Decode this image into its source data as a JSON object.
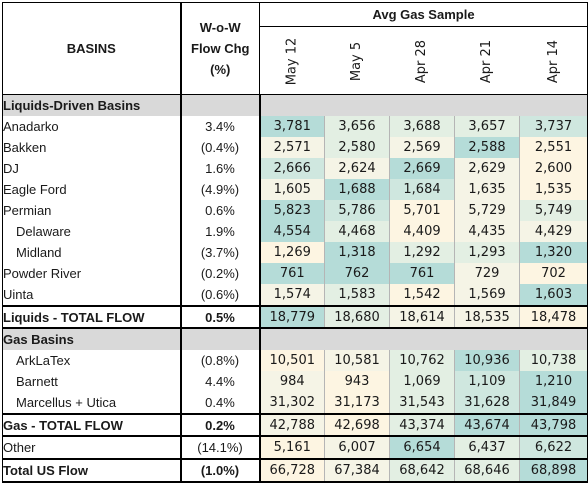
{
  "header": {
    "basins_label": "BASINS",
    "wow_line1": "W-o-W",
    "wow_line2": "Flow Chg",
    "wow_line3": "(%)",
    "avg_label": "Avg Gas Sample",
    "dates": [
      "May 12",
      "May 5",
      "Apr 28",
      "Apr 21",
      "Apr 14"
    ]
  },
  "colors": {
    "teal_strong": "#b5dcd8",
    "teal_mid": "#cfe7df",
    "teal_light": "#e3efe3",
    "cream": "#fdf5e2",
    "pale": "#f5f4e6",
    "section_gray": "#d9d9d9"
  },
  "liquids": {
    "section_label": "Liquids-Driven Basins",
    "rows": [
      {
        "name": "Anadarko",
        "chg": "3.4%",
        "vals": [
          "3,781",
          "3,656",
          "3,688",
          "3,657",
          "3,737"
        ],
        "tints": [
          "teal_strong",
          "teal_light",
          "teal_light",
          "teal_light",
          "teal_mid"
        ]
      },
      {
        "name": "Bakken",
        "chg": "(0.4%)",
        "vals": [
          "2,571",
          "2,580",
          "2,569",
          "2,588",
          "2,551"
        ],
        "tints": [
          "pale",
          "teal_light",
          "pale",
          "teal_strong",
          "cream"
        ]
      },
      {
        "name": "DJ",
        "chg": "1.6%",
        "vals": [
          "2,666",
          "2,624",
          "2,669",
          "2,629",
          "2,600"
        ],
        "tints": [
          "teal_mid",
          "pale",
          "teal_strong",
          "pale",
          "cream"
        ]
      },
      {
        "name": "Eagle Ford",
        "chg": "(4.9%)",
        "vals": [
          "1,605",
          "1,688",
          "1,684",
          "1,635",
          "1,535"
        ],
        "tints": [
          "pale",
          "teal_strong",
          "teal_mid",
          "pale",
          "cream"
        ]
      },
      {
        "name": "Permian",
        "chg": "0.6%",
        "vals": [
          "5,823",
          "5,786",
          "5,701",
          "5,729",
          "5,749"
        ],
        "tints": [
          "teal_strong",
          "teal_mid",
          "cream",
          "pale",
          "teal_light"
        ]
      },
      {
        "name": "Delaware",
        "chg": "1.9%",
        "sub": true,
        "vals": [
          "4,554",
          "4,468",
          "4,409",
          "4,435",
          "4,429"
        ],
        "tints": [
          "teal_strong",
          "teal_light",
          "cream",
          "pale",
          "pale"
        ]
      },
      {
        "name": "Midland",
        "chg": "(3.7%)",
        "sub": true,
        "vals": [
          "1,269",
          "1,318",
          "1,292",
          "1,293",
          "1,320"
        ],
        "tints": [
          "cream",
          "teal_strong",
          "teal_light",
          "teal_light",
          "teal_strong"
        ]
      },
      {
        "name": "Powder River",
        "chg": "(0.2%)",
        "vals": [
          "761",
          "762",
          "761",
          "729",
          "702"
        ],
        "tints": [
          "teal_strong",
          "teal_strong",
          "teal_strong",
          "pale",
          "cream"
        ]
      },
      {
        "name": "Uinta",
        "chg": "(0.6%)",
        "vals": [
          "1,574",
          "1,583",
          "1,542",
          "1,569",
          "1,603"
        ],
        "tints": [
          "pale",
          "teal_light",
          "cream",
          "pale",
          "teal_strong"
        ]
      }
    ],
    "total": {
      "name": "Liquids - TOTAL FLOW",
      "chg": "0.5%",
      "vals": [
        "18,779",
        "18,680",
        "18,614",
        "18,535",
        "18,478"
      ],
      "tints": [
        "teal_strong",
        "teal_light",
        "pale",
        "pale",
        "cream"
      ]
    }
  },
  "gas": {
    "section_label": "Gas Basins",
    "rows": [
      {
        "name": "ArkLaTex",
        "chg": "(0.8%)",
        "sub": true,
        "vals": [
          "10,501",
          "10,581",
          "10,762",
          "10,936",
          "10,738"
        ],
        "tints": [
          "cream",
          "pale",
          "teal_light",
          "teal_strong",
          "teal_light"
        ]
      },
      {
        "name": "Barnett",
        "chg": "4.4%",
        "sub": true,
        "vals": [
          "984",
          "943",
          "1,069",
          "1,109",
          "1,210"
        ],
        "tints": [
          "pale",
          "cream",
          "teal_light",
          "teal_mid",
          "teal_strong"
        ]
      },
      {
        "name": "Marcellus + Utica",
        "chg": "0.4%",
        "sub": true,
        "vals": [
          "31,302",
          "31,173",
          "31,543",
          "31,628",
          "31,849"
        ],
        "tints": [
          "pale",
          "cream",
          "teal_light",
          "teal_mid",
          "teal_strong"
        ]
      }
    ],
    "total": {
      "name": "Gas - TOTAL FLOW",
      "chg": "0.2%",
      "vals": [
        "42,788",
        "42,698",
        "43,374",
        "43,674",
        "43,798"
      ],
      "tints": [
        "pale",
        "cream",
        "teal_light",
        "teal_strong",
        "teal_strong"
      ]
    }
  },
  "other": {
    "name": "Other",
    "chg": "(14.1%)",
    "vals": [
      "5,161",
      "6,007",
      "6,654",
      "6,437",
      "6,622"
    ],
    "tints": [
      "cream",
      "pale",
      "teal_strong",
      "teal_light",
      "teal_mid"
    ]
  },
  "grand_total": {
    "name": "Total US Flow",
    "chg": "(1.0%)",
    "vals": [
      "66,728",
      "67,384",
      "68,642",
      "68,646",
      "68,898"
    ],
    "tints": [
      "cream",
      "pale",
      "teal_light",
      "teal_light",
      "teal_strong"
    ]
  }
}
